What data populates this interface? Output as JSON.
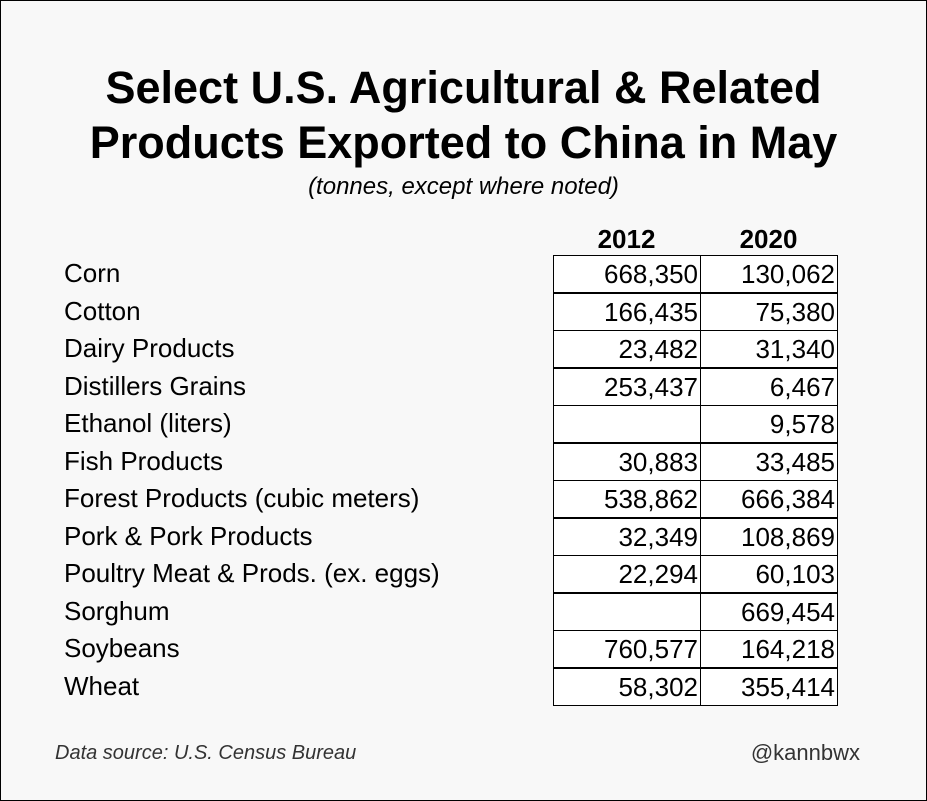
{
  "chart_data": {
    "type": "table",
    "title_lines": [
      "Select U.S. Agricultural & Related",
      "Products Exported to China in May"
    ],
    "subtitle": "(tonnes, except where noted)",
    "columns": [
      "2012",
      "2020"
    ],
    "rows": [
      {
        "label": "Corn",
        "values": [
          "668,350",
          "130,062"
        ]
      },
      {
        "label": "Cotton",
        "values": [
          "166,435",
          "75,380"
        ]
      },
      {
        "label": "Dairy Products",
        "values": [
          "23,482",
          "31,340"
        ]
      },
      {
        "label": "Distillers Grains",
        "values": [
          "253,437",
          "6,467"
        ]
      },
      {
        "label": "Ethanol (liters)",
        "values": [
          "",
          "9,578"
        ]
      },
      {
        "label": "Fish Products",
        "values": [
          "30,883",
          "33,485"
        ]
      },
      {
        "label": "Forest Products (cubic meters)",
        "values": [
          "538,862",
          "666,384"
        ]
      },
      {
        "label": "Pork & Pork Products",
        "values": [
          "32,349",
          "108,869"
        ]
      },
      {
        "label": "Poultry Meat & Prods. (ex. eggs)",
        "values": [
          "22,294",
          "60,103"
        ]
      },
      {
        "label": "Sorghum",
        "values": [
          "",
          "669,454"
        ]
      },
      {
        "label": "Soybeans",
        "values": [
          "760,577",
          "164,218"
        ]
      },
      {
        "label": "Wheat",
        "values": [
          "58,302",
          "355,414"
        ]
      }
    ]
  },
  "footer": {
    "source": "Data source: U.S. Census Bureau",
    "credit": "@kannbwx"
  }
}
